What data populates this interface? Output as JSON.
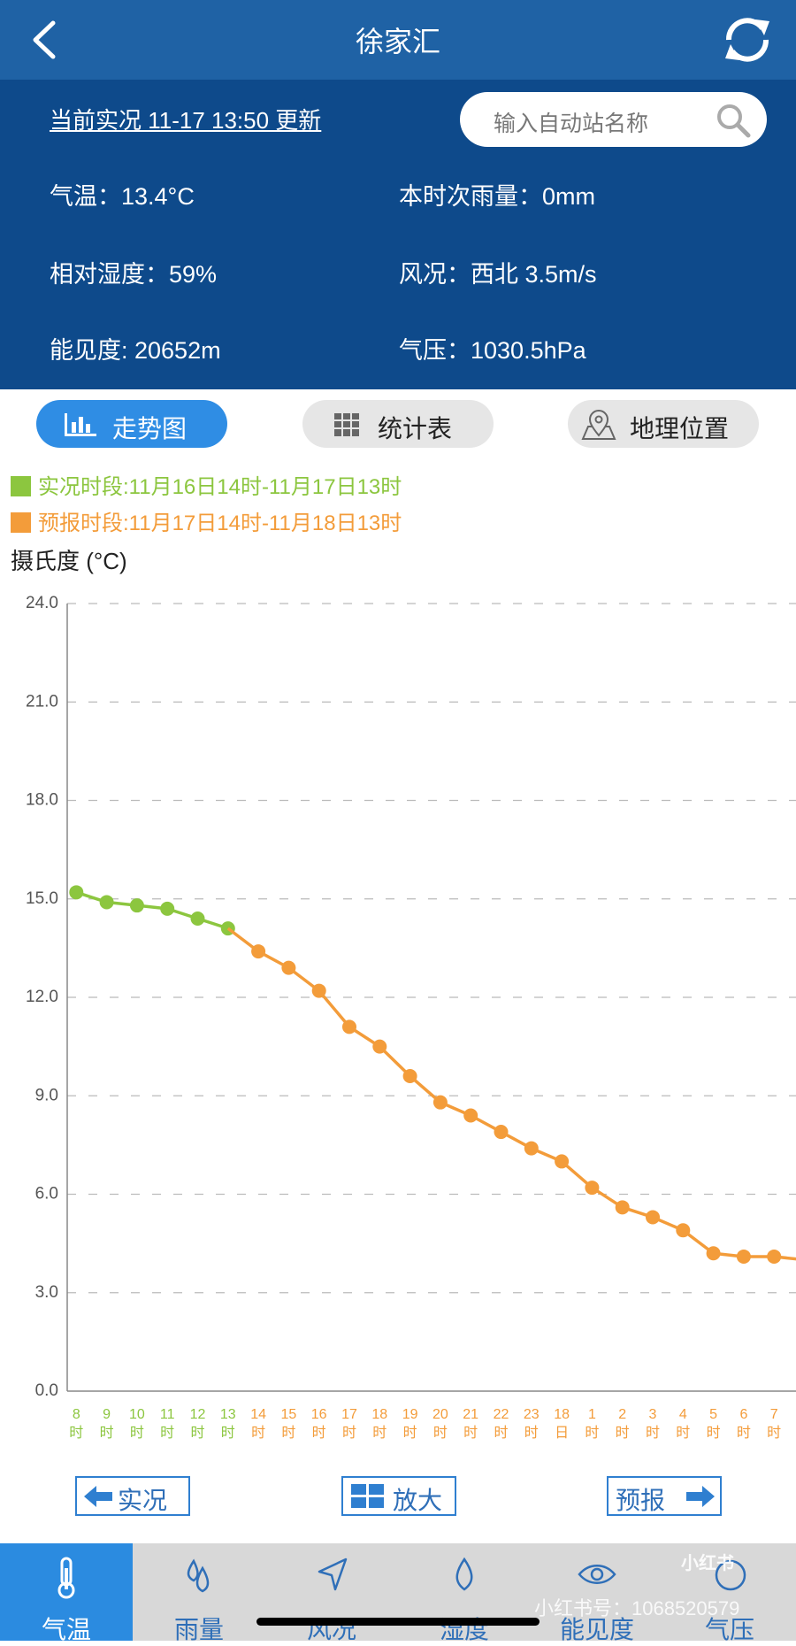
{
  "header": {
    "title": "徐家汇"
  },
  "info": {
    "update": "当前实况 11-17 13:50 更新",
    "search_placeholder": "输入自动站名称",
    "items": [
      "气温：13.4°C",
      "本时次雨量：0mm",
      "相对湿度：59%",
      "风况：西北 3.5m/s",
      "能见度: 20652m",
      "气压：1030.5hPa"
    ]
  },
  "tabs": [
    "走势图",
    "统计表",
    "地理位置"
  ],
  "chart_data": {
    "type": "line",
    "ylabel": "摄氏度 (°C)",
    "categories": [
      "8时",
      "9时",
      "10时",
      "11时",
      "12时",
      "13时",
      "14时",
      "15时",
      "16时",
      "17时",
      "18时",
      "19时",
      "20时",
      "21时",
      "22时",
      "23时",
      "18日",
      "1时",
      "2时",
      "3时",
      "4时",
      "5时",
      "6时",
      "7时",
      null
    ],
    "series": [
      {
        "name": "实况时段:11月16日14时-11月17日13时",
        "color": "#8cc63f",
        "values": [
          15.2,
          14.9,
          14.8,
          14.7,
          14.4,
          14.1,
          null,
          null,
          null,
          null,
          null,
          null,
          null,
          null,
          null,
          null,
          null,
          null,
          null,
          null,
          null,
          null,
          null,
          null,
          null
        ]
      },
      {
        "name": "预报时段:11月17日14时-11月18日13时",
        "color": "#f39c3a",
        "values": [
          null,
          null,
          null,
          null,
          null,
          null,
          13.4,
          12.9,
          12.2,
          11.1,
          10.5,
          9.6,
          8.8,
          8.4,
          7.9,
          7.4,
          7.0,
          6.2,
          5.6,
          5.3,
          4.9,
          4.2,
          4.1,
          4.1,
          4.0
        ]
      }
    ],
    "ylim": [
      0,
      24
    ],
    "yticks": [
      {
        "value": 0,
        "label": "0.0"
      },
      {
        "value": 3,
        "label": "3.0"
      },
      {
        "value": 6,
        "label": "6.0"
      },
      {
        "value": 9,
        "label": "9.0"
      },
      {
        "value": 12,
        "label": "12.0"
      },
      {
        "value": 15,
        "label": "15.0"
      },
      {
        "value": 18,
        "label": "18.0"
      },
      {
        "value": 21,
        "label": "21.0"
      },
      {
        "value": 24,
        "label": "24.0"
      }
    ],
    "grid": true
  },
  "buttons": [
    "实况",
    "放大",
    "预报"
  ],
  "nav": [
    "气温",
    "雨量",
    "风况",
    "湿度",
    "能见度",
    "气压"
  ],
  "watermark": {
    "logo": "小红书",
    "text": "小红书号：1068520579"
  }
}
